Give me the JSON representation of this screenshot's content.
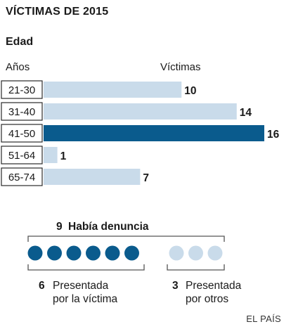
{
  "header": {
    "title": "VÍCTIMAS DE 2015",
    "subtitle": "Edad"
  },
  "columns": {
    "age": "Años",
    "victims": "Víctimas"
  },
  "chart_data": {
    "type": "bar",
    "orientation": "horizontal",
    "categories": [
      "21-30",
      "31-40",
      "41-50",
      "51-64",
      "65-74"
    ],
    "values": [
      10,
      14,
      16,
      1,
      7
    ],
    "highlight_category": "41-50",
    "title": "VÍCTIMAS DE 2015",
    "xlabel": "Víctimas",
    "ylabel": "Años",
    "xlim": [
      0,
      16
    ],
    "grid": false,
    "colors": {
      "bar": "#c9dbea",
      "highlight": "#0a5b8d",
      "border": "#2a2a2a"
    }
  },
  "denuncia": {
    "total_count": "9",
    "total_label": "Había denuncia",
    "victim_count": "6",
    "victim_label_line1": "Presentada",
    "victim_label_line2": "por la víctima",
    "others_count": "3",
    "others_label_line1": "Presentada",
    "others_label_line2": "por otros",
    "colors": {
      "victim": "#0a5b8d",
      "others": "#c9dbea",
      "bracket": "#555555"
    }
  },
  "footer": {
    "source": "EL PAÍS"
  }
}
